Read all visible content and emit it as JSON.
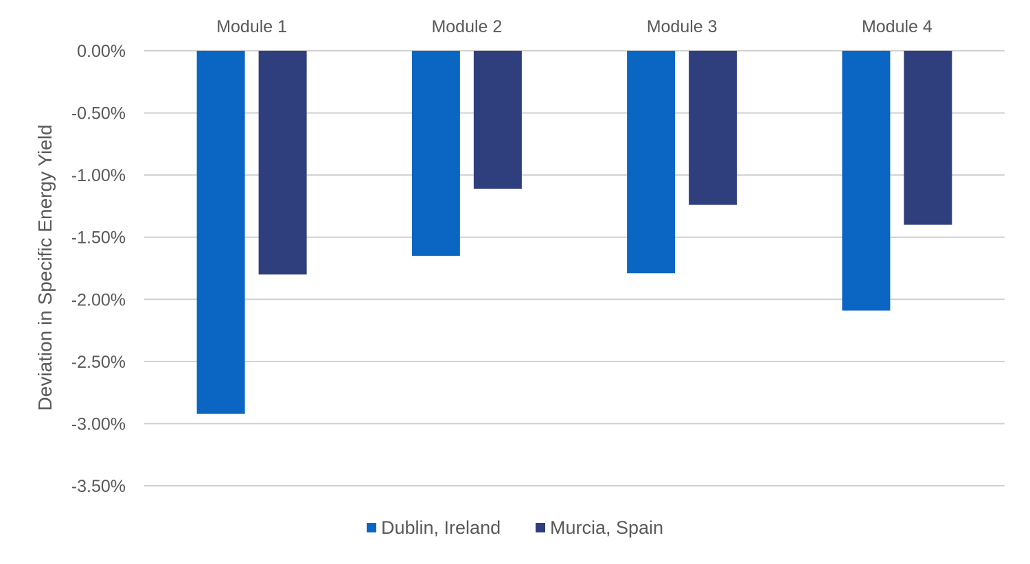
{
  "chart_data": {
    "type": "bar",
    "title": "",
    "xlabel": "",
    "ylabel": "Deviation in Specific Energy Yield",
    "categories": [
      "Module 1",
      "Module 2",
      "Module 3",
      "Module 4"
    ],
    "series": [
      {
        "name": "Dublin, Ireland",
        "color": "#0A66C2",
        "values": [
          -2.92,
          -1.65,
          -1.79,
          -2.09
        ]
      },
      {
        "name": "Murcia, Spain",
        "color": "#2F3E7C",
        "values": [
          -1.8,
          -1.11,
          -1.24,
          -1.4
        ]
      }
    ],
    "ylim": [
      -3.5,
      0
    ],
    "yticks": [
      0,
      -0.5,
      -1.0,
      -1.5,
      -2.0,
      -2.5,
      -3.0,
      -3.5
    ],
    "ytick_labels": [
      "0.00%",
      "-0.50%",
      "-1.00%",
      "-1.50%",
      "-2.00%",
      "-2.50%",
      "-3.00%",
      "-3.50%"
    ],
    "category_axis_position": "top",
    "grid": true,
    "legend_position": "bottom"
  }
}
